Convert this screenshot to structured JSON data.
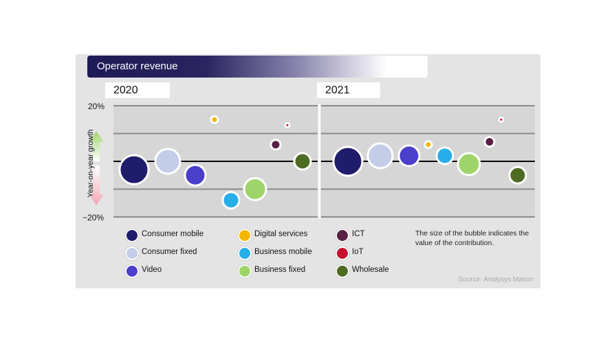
{
  "header": {
    "title": "Operator revenue"
  },
  "source": "Source: Analysys Mason",
  "note": "The size of the bubble indicates the value of the contribution.",
  "chart_data": {
    "type": "bubble",
    "title": "Operator revenue",
    "ylabel": "Year-on-year growth",
    "ylim": [
      -20,
      20
    ],
    "yticks": [
      "20%",
      "−20%"
    ],
    "panels": [
      {
        "name": "2020",
        "points": [
          {
            "series": "Consumer mobile",
            "y": -3,
            "size": 21
          },
          {
            "series": "Consumer fixed",
            "y": 0,
            "size": 18
          },
          {
            "series": "Video",
            "y": -5,
            "size": 15
          },
          {
            "series": "Digital services",
            "y": 15,
            "size": 5
          },
          {
            "series": "Business mobile",
            "y": -14,
            "size": 12
          },
          {
            "series": "Business fixed",
            "y": -10,
            "size": 16
          },
          {
            "series": "ICT",
            "y": 6,
            "size": 7
          },
          {
            "series": "IoT",
            "y": 13,
            "size": 3
          },
          {
            "series": "Wholesale",
            "y": 0,
            "size": 12
          }
        ]
      },
      {
        "name": "2021",
        "points": [
          {
            "series": "Consumer mobile",
            "y": 0,
            "size": 21
          },
          {
            "series": "Consumer fixed",
            "y": 2,
            "size": 18
          },
          {
            "series": "Video",
            "y": 2,
            "size": 15
          },
          {
            "series": "Digital services",
            "y": 6,
            "size": 5
          },
          {
            "series": "Business mobile",
            "y": 2,
            "size": 12
          },
          {
            "series": "Business fixed",
            "y": -1,
            "size": 16
          },
          {
            "series": "ICT",
            "y": 7,
            "size": 7
          },
          {
            "series": "IoT",
            "y": 15,
            "size": 3
          },
          {
            "series": "Wholesale",
            "y": -5,
            "size": 12
          }
        ]
      }
    ],
    "legend": [
      {
        "label": "Consumer mobile",
        "color": "#1f1c6b"
      },
      {
        "label": "Consumer fixed",
        "color": "#c3cde8"
      },
      {
        "label": "Video",
        "color": "#4b3fcc"
      },
      {
        "label": "Digital services",
        "color": "#f5b800"
      },
      {
        "label": "Business mobile",
        "color": "#27aee8"
      },
      {
        "label": "Business fixed",
        "color": "#9fd46a"
      },
      {
        "label": "ICT",
        "color": "#5a1f45"
      },
      {
        "label": "IoT",
        "color": "#c8102e"
      },
      {
        "label": "Wholesale",
        "color": "#4e6b24"
      }
    ]
  }
}
